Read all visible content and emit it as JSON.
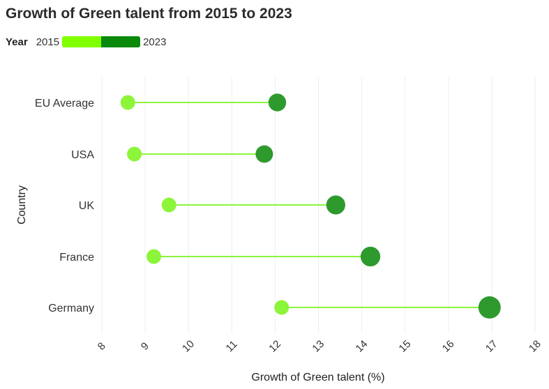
{
  "title": "Growth of Green talent from 2015 to 2023",
  "legend": {
    "label": "Year",
    "start": "2015",
    "end": "2023"
  },
  "colors": {
    "start": "#8cf53a",
    "end": "#2e9a2e",
    "line": "#8cf53a",
    "grid": "#eeeeee"
  },
  "chart_data": {
    "type": "dumbbell",
    "xlabel": "Growth of Green talent (%)",
    "ylabel": "Country",
    "xlim": [
      8,
      18
    ],
    "x_ticks": [
      "8",
      "9",
      "10",
      "11",
      "12",
      "13",
      "14",
      "15",
      "16",
      "17",
      "18"
    ],
    "categories": [
      "EU Average",
      "USA",
      "UK",
      "France",
      "Germany"
    ],
    "series": [
      {
        "name": "2015",
        "values": [
          8.6,
          8.75,
          9.55,
          9.2,
          12.15
        ]
      },
      {
        "name": "2023",
        "values": [
          12.05,
          11.75,
          13.4,
          14.2,
          16.95
        ]
      }
    ]
  }
}
